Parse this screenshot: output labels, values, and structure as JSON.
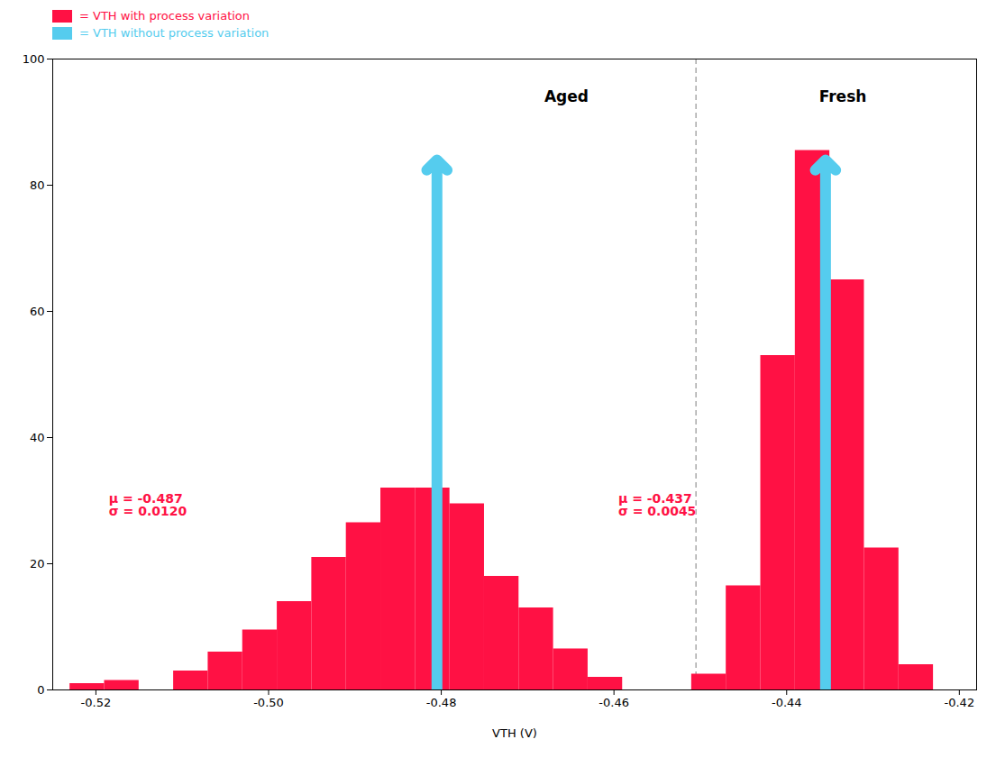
{
  "chart_data": {
    "type": "bar",
    "x_label": "VTH (V)",
    "y_label": null,
    "xlim": [
      -0.525,
      -0.418
    ],
    "ylim": [
      0,
      100
    ],
    "xticks": [
      -0.52,
      {
        "value": -0.5,
        "label": "-0.50"
      },
      -0.48,
      -0.46,
      -0.44,
      -0.42
    ],
    "yticks": [
      0,
      20,
      40,
      60,
      80,
      100
    ],
    "grid": false,
    "legend": "upper left",
    "series": [
      {
        "name": "= VTH with process variation",
        "color": "#ff1144",
        "type": "bar",
        "x": [
          -0.521,
          -0.517,
          -0.513,
          -0.509,
          -0.505,
          -0.501,
          -0.497,
          -0.493,
          -0.489,
          -0.485,
          -0.481,
          -0.477,
          -0.473,
          -0.469,
          -0.465,
          -0.461,
          -0.449,
          -0.445,
          -0.441,
          -0.437,
          -0.433,
          -0.429,
          -0.425,
          -0.421
        ],
        "values": [
          1,
          1.5,
          0,
          3,
          6,
          9.5,
          14,
          21,
          26.5,
          32,
          32,
          29.5,
          18,
          13,
          6.5,
          2,
          2.5,
          16.5,
          53,
          85.5,
          65,
          22.5,
          4,
          0
        ]
      },
      {
        "name": "= VTH without process variation",
        "color": "#55ccee",
        "type": "arrow",
        "x": [
          -0.4805,
          -0.4355
        ],
        "values": [
          84,
          84
        ]
      }
    ],
    "vlines": [
      {
        "x": -0.4505,
        "color": "#aaaaaa",
        "line_style": "dashed"
      }
    ],
    "group_labels": [
      {
        "text": "Aged",
        "x": -0.4655,
        "y": 95,
        "color": "#000000"
      },
      {
        "text": "Fresh",
        "x": -0.4335,
        "y": 95,
        "color": "#000000"
      }
    ],
    "annotations": [
      {
        "text": "μ = -0.487\nσ = 0.0120",
        "x": -0.5185,
        "y": 31,
        "color": "#ff1144"
      },
      {
        "text": "μ = -0.437\nσ = 0.0045",
        "x": -0.4595,
        "y": 31,
        "color": "#ff1144"
      }
    ]
  }
}
